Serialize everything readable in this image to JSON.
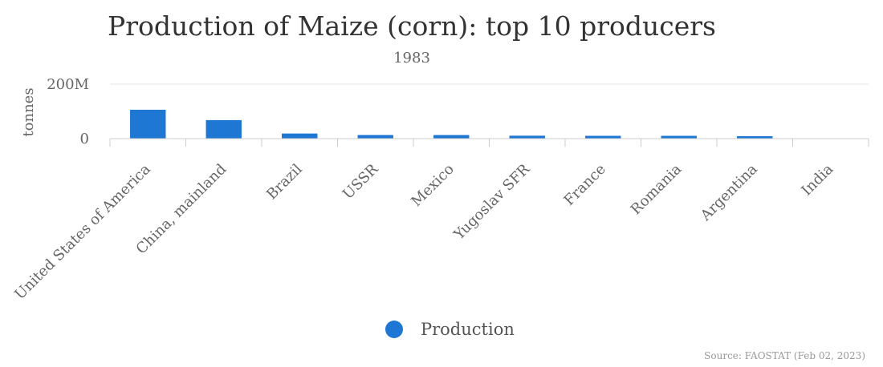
{
  "chart_data": {
    "type": "bar",
    "title": "Production of Maize (corn): top 10 producers",
    "subtitle": "1983",
    "ylabel": "tonnes",
    "xlabel": "",
    "categories": [
      "United States of America",
      "China, mainland",
      "Brazil",
      "USSR",
      "Mexico",
      "Yugoslav SFR",
      "France",
      "Romania",
      "Argentina",
      "India"
    ],
    "series": [
      {
        "name": "Production",
        "color": "#1f77d4",
        "values": [
          106000000,
          68000000,
          18700000,
          13300000,
          13200000,
          10800000,
          10300000,
          10300000,
          9000000,
          1000000
        ]
      }
    ],
    "ylim": [
      0,
      200000000
    ],
    "yticks": [
      {
        "value": 0,
        "label": "0"
      },
      {
        "value": 200000000,
        "label": "200M"
      }
    ],
    "grid": true,
    "legend_position": "bottom"
  },
  "source": "Source: FAOSTAT (Feb 02, 2023)"
}
